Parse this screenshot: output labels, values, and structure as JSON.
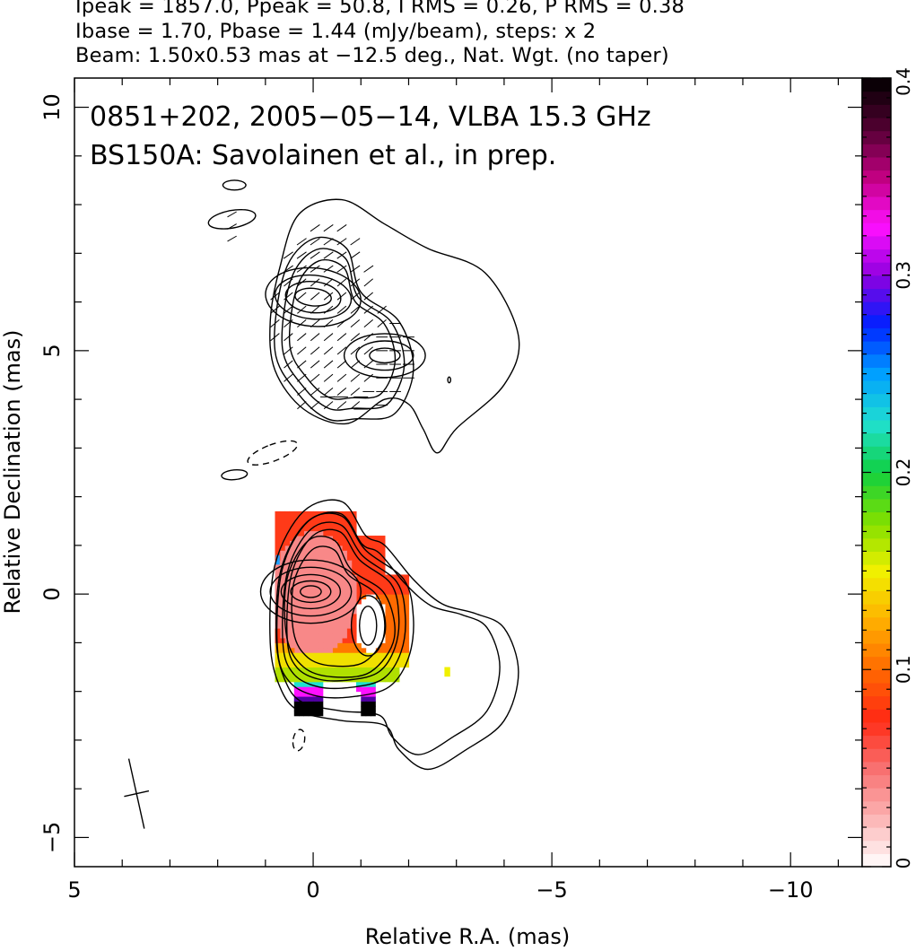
{
  "header": {
    "line1": "Ipeak = 1857.0, Ppeak = 50.8, I RMS = 0.26, P RMS = 0.38",
    "line2": "Ibase = 1.70, Pbase = 1.44 (mJy/beam), steps: x 2",
    "line3": "Beam: 1.50x0.53 mas at −12.5 deg., Nat. Wgt. (no taper)"
  },
  "annotation": {
    "line1": "0851+202, 2005−05−14, VLBA 15.3 GHz",
    "line2": "BS150A: Savolainen et al., in prep."
  },
  "chart_data": {
    "type": "heatmap",
    "xlabel": "Relative R.A. (mas)",
    "ylabel": "Relative Declination (mas)",
    "xlim": [
      5,
      -11.5
    ],
    "ylim": [
      -5.6,
      10.6
    ],
    "x_ticks": [
      {
        "value": 5,
        "label": "5"
      },
      {
        "value": 0,
        "label": "0"
      },
      {
        "value": -5,
        "label": "−5"
      },
      {
        "value": -10,
        "label": "−10"
      }
    ],
    "y_ticks": [
      {
        "value": -5,
        "label": "−5"
      },
      {
        "value": 0,
        "label": "0"
      },
      {
        "value": 5,
        "label": "5"
      },
      {
        "value": 10,
        "label": "10"
      }
    ],
    "colorbar": {
      "range": [
        0,
        0.4
      ],
      "ticks": [
        {
          "value": 0,
          "label": "0"
        },
        {
          "value": 0.1,
          "label": "0.1"
        },
        {
          "value": 0.2,
          "label": "0.2"
        },
        {
          "value": 0.3,
          "label": "0.3"
        },
        {
          "value": 0.4,
          "label": "0.4"
        }
      ],
      "colormap": [
        "#ffffff",
        "#fcb4b4",
        "#f87070",
        "#ff2a14",
        "#ff6a00",
        "#ffb000",
        "#f0f000",
        "#80e000",
        "#10d040",
        "#20e0d0",
        "#00a0ff",
        "#0020ff",
        "#9000e0",
        "#ff10ff",
        "#c00080",
        "#500030",
        "#000000"
      ]
    },
    "stokes_i_peak_mjy_beam": 1857.0,
    "pol_peak_mjy_beam": 50.8,
    "i_rms": 0.26,
    "p_rms": 0.38,
    "i_base": 1.7,
    "p_base": 1.44,
    "contour_step_factor": 2,
    "beam": {
      "major_mas": 1.5,
      "minor_mas": 0.53,
      "pa_deg": -12.5,
      "center": [
        3.7,
        -4.1
      ]
    },
    "core": {
      "center": [
        0.0,
        0.0
      ]
    },
    "secondary_component": {
      "center": [
        -1.1,
        -0.6
      ]
    },
    "jet_component": {
      "center": [
        0.0,
        6.1
      ]
    },
    "grid": false
  }
}
